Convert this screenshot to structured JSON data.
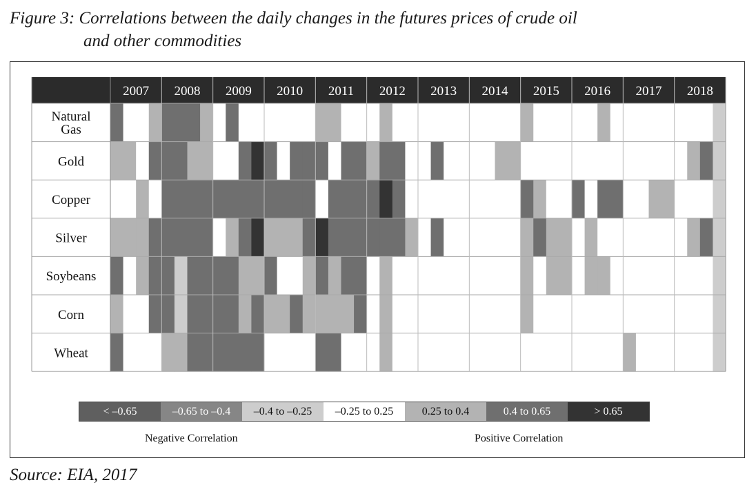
{
  "figure": {
    "title_line1": "Figure 3: Correlations between the daily changes in the futures prices of crude oil",
    "title_line2": "and other commodities",
    "source": "Source: EIA, 2017"
  },
  "chart_data": {
    "type": "heatmap",
    "x_columns": [
      "2007",
      "2008",
      "2009",
      "2010",
      "2011",
      "2012",
      "2013",
      "2014",
      "2015",
      "2016",
      "2017",
      "2018"
    ],
    "periods_per_year": 4,
    "rows": [
      "Natural Gas",
      "Gold",
      "Copper",
      "Silver",
      "Soybeans",
      "Corn",
      "Wheat"
    ],
    "scale": [
      {
        "label": "< –0.65",
        "color": "#5f5f5f"
      },
      {
        "label": "–0.65 to –0.4",
        "color": "#868686"
      },
      {
        "label": "–0.4 to –0.25",
        "color": "#cdcdcd"
      },
      {
        "label": "–0.25 to 0.25",
        "color": "#ffffff"
      },
      {
        "label": "0.25 to 0.4",
        "color": "#b3b3b3"
      },
      {
        "label": "0.4 to 0.65",
        "color": "#6f6f6f"
      },
      {
        "label": "> 0.65",
        "color": "#333333"
      }
    ],
    "values": [
      [
        "0.4 to 0.65",
        "-0.25 to 0.25",
        "-0.25 to 0.25",
        "0.25 to 0.4",
        "0.4 to 0.65",
        "0.4 to 0.65",
        "0.4 to 0.65",
        "0.25 to 0.4",
        "-0.25 to 0.25",
        "0.4 to 0.65",
        "-0.25 to 0.25",
        "-0.25 to 0.25",
        "-0.25 to 0.25",
        "-0.25 to 0.25",
        "-0.25 to 0.25",
        "-0.25 to 0.25",
        "0.25 to 0.4",
        "0.25 to 0.4",
        "-0.25 to 0.25",
        "-0.25 to 0.25",
        "-0.25 to 0.25",
        "0.25 to 0.4",
        "-0.25 to 0.25",
        "-0.25 to 0.25",
        "-0.25 to 0.25",
        "-0.25 to 0.25",
        "-0.25 to 0.25",
        "-0.25 to 0.25",
        "-0.25 to 0.25",
        "-0.25 to 0.25",
        "-0.25 to 0.25",
        "-0.25 to 0.25",
        "0.25 to 0.4",
        "-0.25 to 0.25",
        "-0.25 to 0.25",
        "-0.25 to 0.25",
        "-0.25 to 0.25",
        "-0.25 to 0.25",
        "0.25 to 0.4",
        "-0.25 to 0.25",
        "-0.25 to 0.25",
        "-0.25 to 0.25",
        "-0.25 to 0.25",
        "-0.25 to 0.25",
        "-0.25 to 0.25",
        "-0.25 to 0.25",
        "-0.25 to 0.25",
        "-0.4 to -0.25"
      ],
      [
        "0.25 to 0.4",
        "0.25 to 0.4",
        "-0.25 to 0.25",
        "0.4 to 0.65",
        "0.4 to 0.65",
        "0.4 to 0.65",
        "0.25 to 0.4",
        "0.25 to 0.4",
        "-0.25 to 0.25",
        "-0.25 to 0.25",
        "0.4 to 0.65",
        "> 0.65",
        "0.4 to 0.65",
        "-0.25 to 0.25",
        "0.4 to 0.65",
        "0.4 to 0.65",
        "0.4 to 0.65",
        "-0.25 to 0.25",
        "0.4 to 0.65",
        "0.4 to 0.65",
        "0.25 to 0.4",
        "0.4 to 0.65",
        "0.4 to 0.65",
        "-0.25 to 0.25",
        "-0.25 to 0.25",
        "0.4 to 0.65",
        "-0.25 to 0.25",
        "-0.25 to 0.25",
        "-0.25 to 0.25",
        "-0.25 to 0.25",
        "0.25 to 0.4",
        "0.25 to 0.4",
        "-0.25 to 0.25",
        "-0.25 to 0.25",
        "-0.25 to 0.25",
        "-0.25 to 0.25",
        "-0.25 to 0.25",
        "-0.25 to 0.25",
        "-0.25 to 0.25",
        "-0.25 to 0.25",
        "-0.25 to 0.25",
        "-0.25 to 0.25",
        "-0.25 to 0.25",
        "-0.25 to 0.25",
        "-0.25 to 0.25",
        "0.25 to 0.4",
        "0.4 to 0.65",
        "-0.4 to -0.25"
      ],
      [
        "-0.25 to 0.25",
        "-0.25 to 0.25",
        "0.25 to 0.4",
        "-0.25 to 0.25",
        "0.4 to 0.65",
        "0.4 to 0.65",
        "0.4 to 0.65",
        "0.4 to 0.65",
        "0.4 to 0.65",
        "0.4 to 0.65",
        "0.4 to 0.65",
        "0.4 to 0.65",
        "0.4 to 0.65",
        "0.4 to 0.65",
        "0.4 to 0.65",
        "0.4 to 0.65",
        "-0.25 to 0.25",
        "0.4 to 0.65",
        "0.4 to 0.65",
        "0.4 to 0.65",
        "0.4 to 0.65",
        "> 0.65",
        "0.4 to 0.65",
        "-0.25 to 0.25",
        "-0.25 to 0.25",
        "-0.25 to 0.25",
        "-0.25 to 0.25",
        "-0.25 to 0.25",
        "-0.25 to 0.25",
        "-0.25 to 0.25",
        "-0.25 to 0.25",
        "-0.25 to 0.25",
        "0.4 to 0.65",
        "0.25 to 0.4",
        "-0.25 to 0.25",
        "-0.25 to 0.25",
        "0.4 to 0.65",
        "-0.25 to 0.25",
        "0.4 to 0.65",
        "0.4 to 0.65",
        "-0.25 to 0.25",
        "-0.25 to 0.25",
        "0.25 to 0.4",
        "0.25 to 0.4",
        "-0.25 to 0.25",
        "-0.25 to 0.25",
        "-0.25 to 0.25",
        "-0.4 to -0.25"
      ],
      [
        "0.25 to 0.4",
        "0.25 to 0.4",
        "0.25 to 0.4",
        "0.4 to 0.65",
        "0.4 to 0.65",
        "0.4 to 0.65",
        "0.4 to 0.65",
        "0.4 to 0.65",
        "-0.25 to 0.25",
        "0.25 to 0.4",
        "0.4 to 0.65",
        "> 0.65",
        "0.25 to 0.4",
        "0.25 to 0.4",
        "0.25 to 0.4",
        "0.4 to 0.65",
        "> 0.65",
        "0.4 to 0.65",
        "0.4 to 0.65",
        "0.4 to 0.65",
        "0.4 to 0.65",
        "0.4 to 0.65",
        "0.4 to 0.65",
        "0.25 to 0.4",
        "-0.25 to 0.25",
        "0.4 to 0.65",
        "-0.25 to 0.25",
        "-0.25 to 0.25",
        "-0.25 to 0.25",
        "-0.25 to 0.25",
        "-0.25 to 0.25",
        "-0.25 to 0.25",
        "0.25 to 0.4",
        "0.4 to 0.65",
        "0.25 to 0.4",
        "0.25 to 0.4",
        "-0.25 to 0.25",
        "0.25 to 0.4",
        "-0.25 to 0.25",
        "-0.25 to 0.25",
        "-0.25 to 0.25",
        "-0.25 to 0.25",
        "-0.25 to 0.25",
        "-0.25 to 0.25",
        "-0.25 to 0.25",
        "0.25 to 0.4",
        "0.4 to 0.65",
        "-0.4 to -0.25"
      ],
      [
        "0.4 to 0.65",
        "-0.25 to 0.25",
        "0.25 to 0.4",
        "0.4 to 0.65",
        "0.4 to 0.65",
        "-0.4 to -0.25",
        "0.4 to 0.65",
        "0.4 to 0.65",
        "0.4 to 0.65",
        "0.4 to 0.65",
        "0.25 to 0.4",
        "0.25 to 0.4",
        "0.4 to 0.65",
        "-0.25 to 0.25",
        "-0.25 to 0.25",
        "0.25 to 0.4",
        "0.4 to 0.65",
        "0.25 to 0.4",
        "0.4 to 0.65",
        "0.4 to 0.65",
        "-0.25 to 0.25",
        "0.25 to 0.4",
        "-0.25 to 0.25",
        "-0.25 to 0.25",
        "-0.25 to 0.25",
        "-0.25 to 0.25",
        "-0.25 to 0.25",
        "-0.25 to 0.25",
        "-0.25 to 0.25",
        "-0.25 to 0.25",
        "-0.25 to 0.25",
        "-0.25 to 0.25",
        "0.25 to 0.4",
        "-0.25 to 0.25",
        "0.25 to 0.4",
        "0.25 to 0.4",
        "-0.25 to 0.25",
        "0.25 to 0.4",
        "0.25 to 0.4",
        "-0.25 to 0.25",
        "-0.25 to 0.25",
        "-0.25 to 0.25",
        "-0.25 to 0.25",
        "-0.25 to 0.25",
        "-0.25 to 0.25",
        "-0.25 to 0.25",
        "-0.25 to 0.25",
        "-0.4 to -0.25"
      ],
      [
        "0.25 to 0.4",
        "-0.25 to 0.25",
        "-0.25 to 0.25",
        "0.4 to 0.65",
        "0.4 to 0.65",
        "-0.4 to -0.25",
        "0.4 to 0.65",
        "0.4 to 0.65",
        "0.4 to 0.65",
        "0.4 to 0.65",
        "0.25 to 0.4",
        "0.4 to 0.65",
        "0.25 to 0.4",
        "0.25 to 0.4",
        "0.4 to 0.65",
        "0.25 to 0.4",
        "0.25 to 0.4",
        "0.25 to 0.4",
        "0.25 to 0.4",
        "0.4 to 0.65",
        "-0.25 to 0.25",
        "0.25 to 0.4",
        "-0.25 to 0.25",
        "-0.25 to 0.25",
        "-0.25 to 0.25",
        "-0.25 to 0.25",
        "-0.25 to 0.25",
        "-0.25 to 0.25",
        "-0.25 to 0.25",
        "-0.25 to 0.25",
        "-0.25 to 0.25",
        "-0.25 to 0.25",
        "0.25 to 0.4",
        "-0.25 to 0.25",
        "-0.25 to 0.25",
        "-0.25 to 0.25",
        "-0.25 to 0.25",
        "-0.25 to 0.25",
        "-0.25 to 0.25",
        "-0.25 to 0.25",
        "-0.25 to 0.25",
        "-0.25 to 0.25",
        "-0.25 to 0.25",
        "-0.25 to 0.25",
        "-0.25 to 0.25",
        "-0.25 to 0.25",
        "-0.25 to 0.25",
        "-0.4 to -0.25"
      ],
      [
        "0.4 to 0.65",
        "-0.25 to 0.25",
        "-0.25 to 0.25",
        "-0.25 to 0.25",
        "0.25 to 0.4",
        "0.25 to 0.4",
        "0.4 to 0.65",
        "0.4 to 0.65",
        "0.4 to 0.65",
        "0.4 to 0.65",
        "0.4 to 0.65",
        "0.4 to 0.65",
        "-0.25 to 0.25",
        "-0.25 to 0.25",
        "-0.25 to 0.25",
        "-0.25 to 0.25",
        "0.4 to 0.65",
        "0.4 to 0.65",
        "-0.25 to 0.25",
        "-0.25 to 0.25",
        "-0.25 to 0.25",
        "0.25 to 0.4",
        "-0.25 to 0.25",
        "-0.25 to 0.25",
        "-0.25 to 0.25",
        "-0.25 to 0.25",
        "-0.25 to 0.25",
        "-0.25 to 0.25",
        "-0.25 to 0.25",
        "-0.25 to 0.25",
        "-0.25 to 0.25",
        "-0.25 to 0.25",
        "-0.25 to 0.25",
        "-0.25 to 0.25",
        "-0.25 to 0.25",
        "-0.25 to 0.25",
        "-0.25 to 0.25",
        "-0.25 to 0.25",
        "-0.25 to 0.25",
        "-0.25 to 0.25",
        "0.25 to 0.4",
        "-0.25 to 0.25",
        "-0.25 to 0.25",
        "-0.25 to 0.25",
        "-0.25 to 0.25",
        "-0.25 to 0.25",
        "-0.25 to 0.25",
        "-0.4 to -0.25"
      ]
    ],
    "legend_groups": {
      "negative": "Negative Correlation",
      "positive": "Positive Correlation"
    },
    "legend_placement": "bottom"
  }
}
